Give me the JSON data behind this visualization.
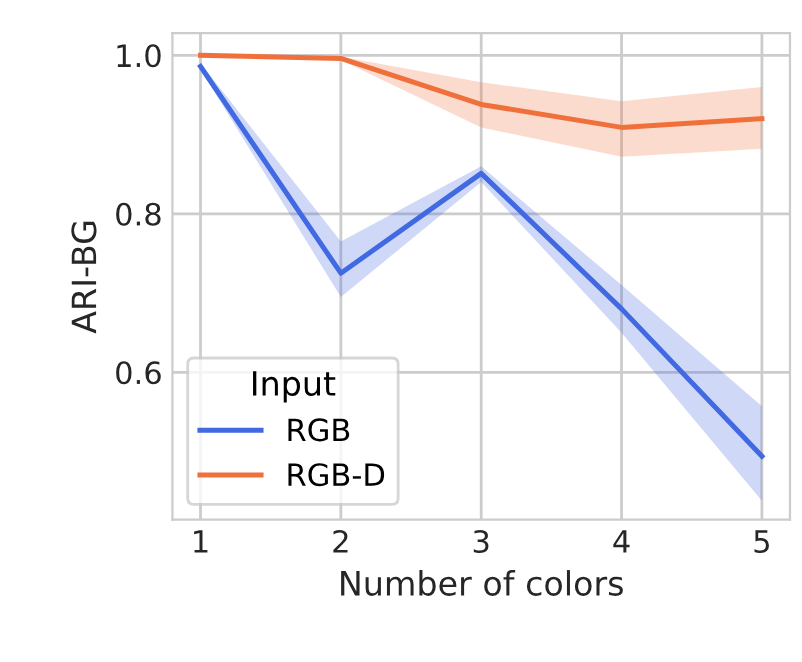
{
  "chart_data": {
    "type": "line",
    "xlabel": "Number of colors",
    "ylabel": "ARI-BG",
    "legend_title": "Input",
    "legend": "bottom left",
    "grid": true,
    "x": [
      1,
      2,
      3,
      4,
      5
    ],
    "xlim": [
      0.8,
      5.2
    ],
    "xticks": [
      1,
      2,
      3,
      4,
      5
    ],
    "ylim": [
      0.414,
      1.028
    ],
    "yticks": [
      {
        "value": 0.6,
        "label": "0.6"
      },
      {
        "value": 0.8,
        "label": "0.8"
      },
      {
        "value": 1.0,
        "label": "1.0"
      }
    ],
    "series": [
      {
        "name": "RGB",
        "color": "#4169e1",
        "values": [
          0.986,
          0.725,
          0.851,
          0.68,
          0.494
        ],
        "lower": [
          0.982,
          0.695,
          0.84,
          0.65,
          0.438
        ],
        "upper": [
          0.99,
          0.765,
          0.86,
          0.71,
          0.557
        ]
      },
      {
        "name": "RGB-D",
        "color": "#f0703c",
        "values": [
          1.0,
          0.996,
          0.938,
          0.909,
          0.92
        ],
        "lower": [
          0.999,
          0.994,
          0.909,
          0.872,
          0.882
        ],
        "upper": [
          1.0,
          0.998,
          0.966,
          0.942,
          0.96
        ]
      }
    ]
  }
}
